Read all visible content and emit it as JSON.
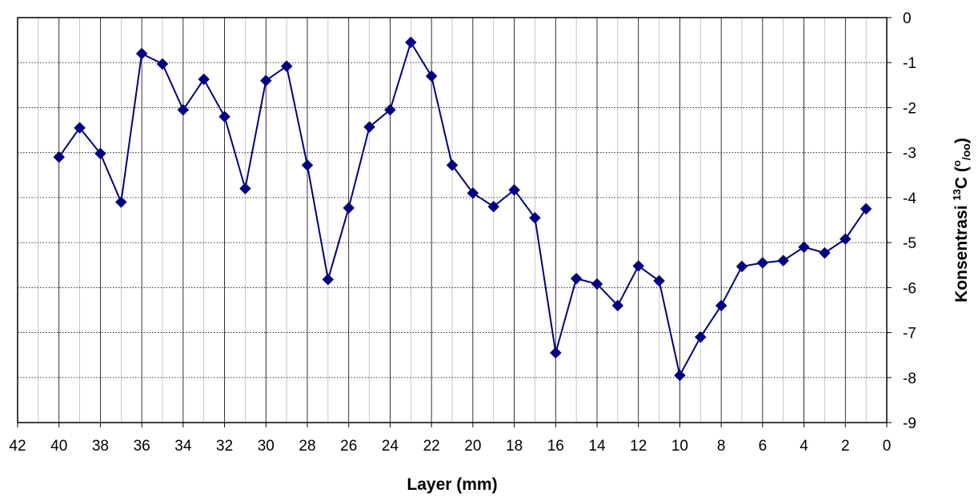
{
  "chart_data": {
    "type": "line",
    "xlabel": "Layer (mm)",
    "ylabel": {
      "prefix": "Konsentrasi ",
      "superscript": "13",
      "middle": "C (",
      "unit_sup": "o",
      "unit_sub": "/oo",
      "suffix": ")"
    },
    "xlim": [
      42,
      0
    ],
    "ylim": [
      -9,
      0
    ],
    "x_reversed": true,
    "y_axis_side": "right",
    "x_ticks": [
      42,
      40,
      38,
      36,
      34,
      32,
      30,
      28,
      26,
      24,
      22,
      20,
      18,
      16,
      14,
      12,
      10,
      8,
      6,
      4,
      2,
      0
    ],
    "y_ticks": [
      0,
      -1,
      -2,
      -3,
      -4,
      -5,
      -6,
      -7,
      -8,
      -9
    ],
    "grid": true,
    "series": [
      {
        "color": "#00007f",
        "marker": "diamond",
        "x": [
          40,
          39,
          38,
          37,
          36,
          35,
          34,
          33,
          32,
          31,
          30,
          29,
          28,
          27,
          26,
          25,
          24,
          23,
          22,
          21,
          20,
          19,
          18,
          17,
          16,
          15,
          14,
          13,
          12,
          11,
          10,
          9,
          8,
          7,
          6,
          5,
          4,
          3,
          2,
          1
        ],
        "values": [
          -3.1,
          -2.45,
          -3.02,
          -4.1,
          -0.8,
          -1.03,
          -2.05,
          -1.37,
          -2.2,
          -3.8,
          -1.4,
          -1.08,
          -3.28,
          -5.82,
          -4.23,
          -2.43,
          -2.05,
          -0.55,
          -1.3,
          -3.28,
          -3.9,
          -4.2,
          -3.83,
          -4.45,
          -7.45,
          -5.8,
          -5.92,
          -6.4,
          -5.52,
          -5.85,
          -7.95,
          -7.1,
          -6.4,
          -5.53,
          -5.45,
          -5.4,
          -5.1,
          -5.23,
          -4.92,
          -4.25
        ]
      }
    ]
  }
}
